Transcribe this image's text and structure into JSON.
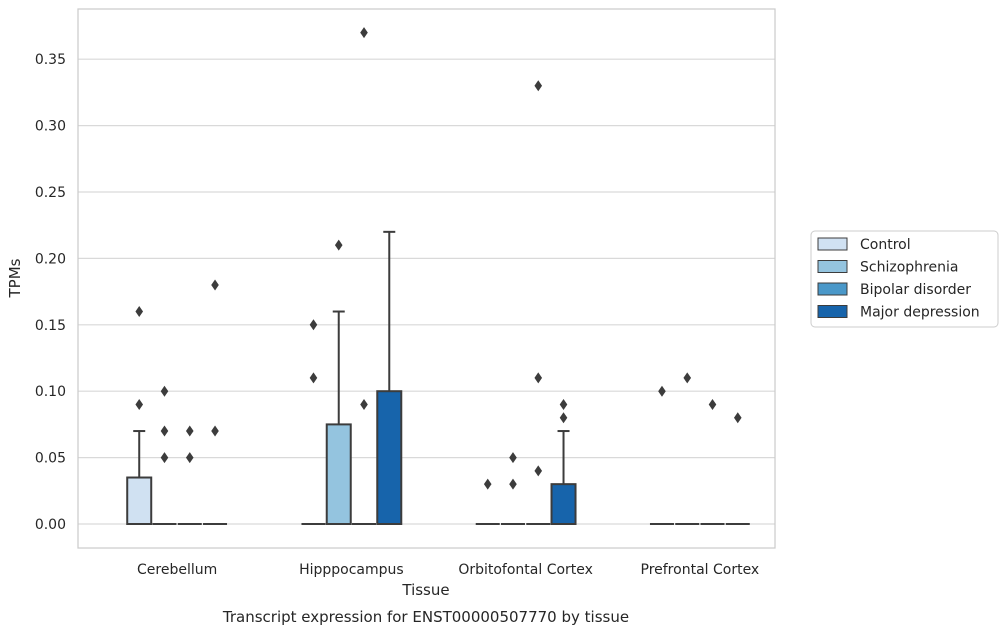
{
  "chart_data": {
    "type": "boxplot",
    "caption": "Transcript expression for ENST00000507770 by tissue",
    "xlabel": "Tissue",
    "ylabel": "TPMs",
    "ylim": [
      -0.018,
      0.388
    ],
    "yticks": [
      "0.00",
      "0.05",
      "0.10",
      "0.15",
      "0.20",
      "0.25",
      "0.30",
      "0.35"
    ],
    "grid": true,
    "legend_position": "right",
    "categories": [
      "Cerebellum",
      "Hipppocampus",
      "Orbitofontal Cortex",
      "Prefrontal Cortex"
    ],
    "series": [
      {
        "name": "Control",
        "color": "#d0e1f2",
        "boxes": [
          {
            "q1": 0.0,
            "median": 0.0,
            "q3": 0.035,
            "whisker_low": 0.0,
            "whisker_high": 0.07,
            "outliers": [
              0.09,
              0.16
            ]
          },
          {
            "q1": 0.0,
            "median": 0.0,
            "q3": 0.0,
            "whisker_low": 0.0,
            "whisker_high": 0.0,
            "outliers": [
              0.11,
              0.15
            ]
          },
          {
            "q1": 0.0,
            "median": 0.0,
            "q3": 0.0,
            "whisker_low": 0.0,
            "whisker_high": 0.0,
            "outliers": [
              0.03
            ]
          },
          {
            "q1": 0.0,
            "median": 0.0,
            "q3": 0.0,
            "whisker_low": 0.0,
            "whisker_high": 0.0,
            "outliers": [
              0.1
            ]
          }
        ]
      },
      {
        "name": "Schizophrenia",
        "color": "#94c4df",
        "boxes": [
          {
            "q1": 0.0,
            "median": 0.0,
            "q3": 0.0,
            "whisker_low": 0.0,
            "whisker_high": 0.0,
            "outliers": [
              0.05,
              0.07,
              0.1
            ]
          },
          {
            "q1": 0.0,
            "median": 0.0,
            "q3": 0.075,
            "whisker_low": 0.0,
            "whisker_high": 0.16,
            "outliers": [
              0.21
            ]
          },
          {
            "q1": 0.0,
            "median": 0.0,
            "q3": 0.0,
            "whisker_low": 0.0,
            "whisker_high": 0.0,
            "outliers": [
              0.03,
              0.05
            ]
          },
          {
            "q1": 0.0,
            "median": 0.0,
            "q3": 0.0,
            "whisker_low": 0.0,
            "whisker_high": 0.0,
            "outliers": [
              0.11
            ]
          }
        ]
      },
      {
        "name": "Bipolar disorder",
        "color": "#4a98c9",
        "boxes": [
          {
            "q1": 0.0,
            "median": 0.0,
            "q3": 0.0,
            "whisker_low": 0.0,
            "whisker_high": 0.0,
            "outliers": [
              0.05,
              0.07
            ]
          },
          {
            "q1": 0.0,
            "median": 0.0,
            "q3": 0.0,
            "whisker_low": 0.0,
            "whisker_high": 0.0,
            "outliers": [
              0.09,
              0.37
            ]
          },
          {
            "q1": 0.0,
            "median": 0.0,
            "q3": 0.0,
            "whisker_low": 0.0,
            "whisker_high": 0.0,
            "outliers": [
              0.04,
              0.11,
              0.33
            ]
          },
          {
            "q1": 0.0,
            "median": 0.0,
            "q3": 0.0,
            "whisker_low": 0.0,
            "whisker_high": 0.0,
            "outliers": [
              0.09
            ]
          }
        ]
      },
      {
        "name": "Major depression",
        "color": "#1764ab",
        "boxes": [
          {
            "q1": 0.0,
            "median": 0.0,
            "q3": 0.0,
            "whisker_low": 0.0,
            "whisker_high": 0.0,
            "outliers": [
              0.07,
              0.18
            ]
          },
          {
            "q1": 0.0,
            "median": 0.0,
            "q3": 0.1,
            "whisker_low": 0.0,
            "whisker_high": 0.22,
            "outliers": []
          },
          {
            "q1": 0.0,
            "median": 0.0,
            "q3": 0.03,
            "whisker_low": 0.0,
            "whisker_high": 0.07,
            "outliers": [
              0.08,
              0.09
            ]
          },
          {
            "q1": 0.0,
            "median": 0.0,
            "q3": 0.0,
            "whisker_low": 0.0,
            "whisker_high": 0.0,
            "outliers": [
              0.08
            ]
          }
        ]
      }
    ]
  }
}
